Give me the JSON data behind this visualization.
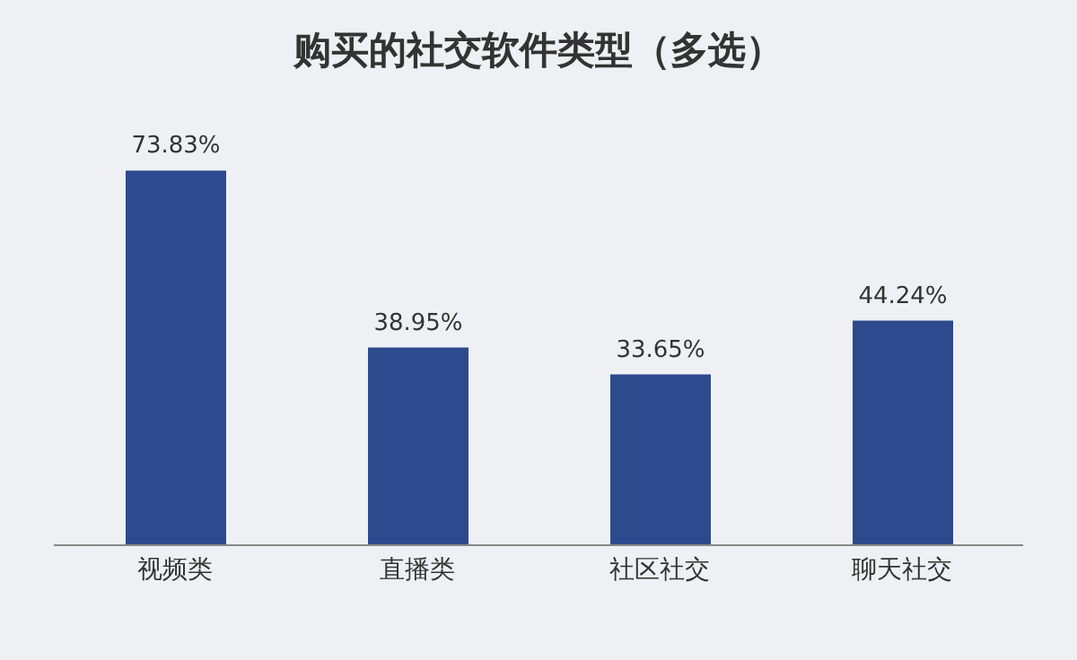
{
  "chart_data": {
    "type": "bar",
    "title": "购买的社交软件类型（多选）",
    "categories": [
      "视频类",
      "直播类",
      "社区社交",
      "聊天社交"
    ],
    "values": [
      73.83,
      38.95,
      33.65,
      44.24
    ],
    "value_labels": [
      "73.83%",
      "38.95%",
      "33.65%",
      "44.24%"
    ],
    "color": "#2e4a8e"
  }
}
